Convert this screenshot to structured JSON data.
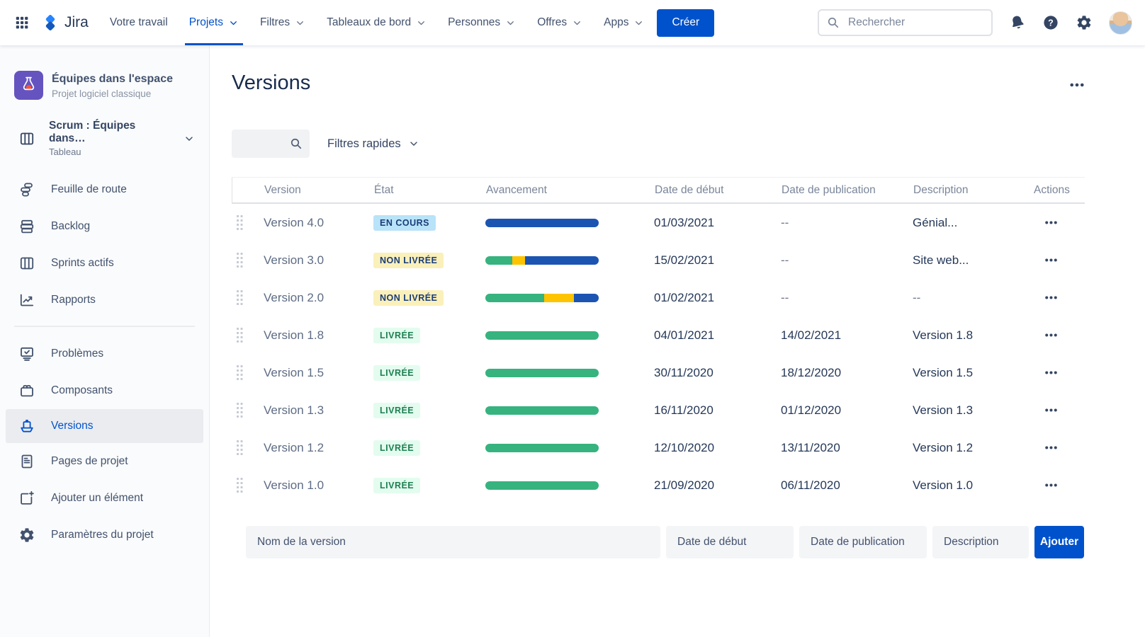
{
  "colors": {
    "accent": "#0052CC",
    "progress": {
      "blue": "#1C54B2",
      "green": "#36B37E",
      "yellow": "#FFC400"
    },
    "badge_in_progress_bg": "#B8E3F8",
    "badge_unreleased_bg": "#FAF0BA",
    "badge_released_bg": "#E3FCEF",
    "sidebar_selected_bg": "#EBECF0",
    "project_avatar_bg": "#6554C0"
  },
  "topbar": {
    "logo_text": "Jira",
    "nav": [
      {
        "label": "Votre travail",
        "chevron": false,
        "active": false
      },
      {
        "label": "Projets",
        "chevron": true,
        "active": true
      },
      {
        "label": "Filtres",
        "chevron": true,
        "active": false
      },
      {
        "label": "Tableaux de bord",
        "chevron": true,
        "active": false
      },
      {
        "label": "Personnes",
        "chevron": true,
        "active": false
      },
      {
        "label": "Offres",
        "chevron": true,
        "active": false
      },
      {
        "label": "Apps",
        "chevron": true,
        "active": false
      }
    ],
    "create_label": "Créer",
    "search_placeholder": "Rechercher",
    "icons": [
      "app-switcher-grid-icon",
      "notifications-bell-icon",
      "help-icon",
      "settings-gear-icon",
      "user-avatar"
    ]
  },
  "sidebar": {
    "project": {
      "name": "Équipes dans l'espace",
      "type": "Projet logiciel classique",
      "avatar_icon": "flask-project-avatar"
    },
    "board": {
      "name": "Scrum : Équipes dans…",
      "subtitle": "Tableau",
      "icon": "board-icon"
    },
    "items_top": [
      {
        "icon": "roadmap-icon",
        "label": "Feuille de route"
      },
      {
        "icon": "backlog-icon",
        "label": "Backlog"
      },
      {
        "icon": "board-icon",
        "label": "Sprints actifs"
      },
      {
        "icon": "reports-icon",
        "label": "Rapports"
      }
    ],
    "items_bottom": [
      {
        "icon": "issues-icon",
        "label": "Problèmes"
      },
      {
        "icon": "components-icon",
        "label": "Composants"
      },
      {
        "icon": "versions-ship-icon",
        "label": "Versions",
        "selected": true
      },
      {
        "icon": "pages-icon",
        "label": "Pages de projet"
      },
      {
        "icon": "add-item-icon",
        "label": "Ajouter un élément"
      },
      {
        "icon": "settings-gear-icon",
        "label": "Paramètres du projet"
      }
    ]
  },
  "main": {
    "title": "Versions",
    "quick_filters_label": "Filtres rapides",
    "table": {
      "headers": [
        "Version",
        "État",
        "Avancement",
        "Date de début",
        "Date de publication",
        "Description",
        "Actions"
      ],
      "rows": [
        {
          "name": "Version 4.0",
          "status": {
            "label": "EN COURS",
            "type": "in_progress"
          },
          "progress": [
            {
              "color": "blue",
              "pct": 100
            }
          ],
          "start_date": "01/03/2021",
          "release_date": "--",
          "description": "Génial..."
        },
        {
          "name": "Version 3.0",
          "status": {
            "label": "NON LIVRÉE",
            "type": "unreleased"
          },
          "progress": [
            {
              "color": "green",
              "pct": 24
            },
            {
              "color": "yellow",
              "pct": 11
            },
            {
              "color": "blue",
              "pct": 65
            }
          ],
          "start_date": "15/02/2021",
          "release_date": "--",
          "description": "Site web..."
        },
        {
          "name": "Version 2.0",
          "status": {
            "label": "NON LIVRÉE",
            "type": "unreleased"
          },
          "progress": [
            {
              "color": "green",
              "pct": 52
            },
            {
              "color": "yellow",
              "pct": 26
            },
            {
              "color": "blue",
              "pct": 22
            }
          ],
          "start_date": "01/02/2021",
          "release_date": "--",
          "description": "--"
        },
        {
          "name": "Version 1.8",
          "status": {
            "label": "LIVRÉE",
            "type": "released"
          },
          "progress": [
            {
              "color": "green",
              "pct": 100
            }
          ],
          "start_date": "04/01/2021",
          "release_date": "14/02/2021",
          "description": "Version 1.8"
        },
        {
          "name": "Version 1.5",
          "status": {
            "label": "LIVRÉE",
            "type": "released"
          },
          "progress": [
            {
              "color": "green",
              "pct": 100
            }
          ],
          "start_date": "30/11/2020",
          "release_date": "18/12/2020",
          "description": "Version 1.5"
        },
        {
          "name": "Version 1.3",
          "status": {
            "label": "LIVRÉE",
            "type": "released"
          },
          "progress": [
            {
              "color": "green",
              "pct": 100
            }
          ],
          "start_date": "16/11/2020",
          "release_date": "01/12/2020",
          "description": "Version 1.3"
        },
        {
          "name": "Version 1.2",
          "status": {
            "label": "LIVRÉE",
            "type": "released"
          },
          "progress": [
            {
              "color": "green",
              "pct": 100
            }
          ],
          "start_date": "12/10/2020",
          "release_date": "13/11/2020",
          "description": "Version 1.2"
        },
        {
          "name": "Version 1.0",
          "status": {
            "label": "LIVRÉE",
            "type": "released"
          },
          "progress": [
            {
              "color": "green",
              "pct": 100
            }
          ],
          "start_date": "21/09/2020",
          "release_date": "06/11/2020",
          "description": "Version 1.0"
        }
      ]
    },
    "form": {
      "name_placeholder": "Nom de la version",
      "start_placeholder": "Date de début",
      "release_placeholder": "Date de publication",
      "description_placeholder": "Description",
      "add_label": "Ajouter"
    }
  }
}
